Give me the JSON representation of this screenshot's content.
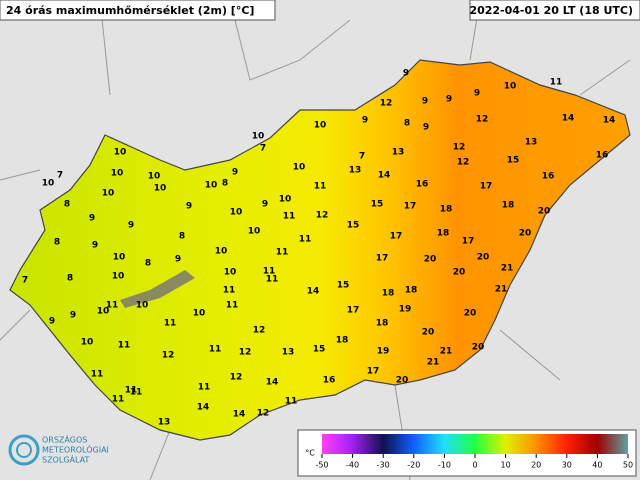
{
  "header": {
    "title": "24 órás maximumhőmérséklet (2m) [°C]",
    "timestamp": "2022-04-01 20 LT (18 UTC)"
  },
  "stations": [
    9,
    9,
    10,
    11,
    9,
    9,
    12,
    10,
    10,
    7,
    9,
    8,
    9,
    12,
    14,
    14,
    7,
    13,
    12,
    13,
    10,
    7,
    10,
    10,
    13,
    14,
    12,
    15,
    16,
    10,
    10,
    9,
    10,
    8,
    11,
    10,
    16,
    17,
    16,
    8,
    10,
    10,
    9,
    9,
    11,
    12,
    15,
    17,
    18,
    18,
    20,
    9,
    9,
    10,
    8,
    9,
    8,
    10,
    11,
    15,
    17,
    18,
    17,
    20,
    7,
    10,
    8,
    9,
    10,
    11,
    17,
    20,
    20,
    8,
    10,
    10,
    11,
    11,
    15,
    18,
    18,
    20,
    21,
    11,
    14,
    21,
    9,
    9,
    11,
    10,
    10,
    10,
    11,
    11,
    17,
    19,
    20,
    10,
    11,
    12,
    18,
    20,
    12,
    11,
    12,
    13,
    15,
    18,
    19,
    21,
    20,
    11,
    12,
    14,
    16,
    17,
    21,
    11,
    11,
    20,
    11,
    11,
    14,
    11,
    13,
    14,
    12
  ],
  "colorbar": {
    "unit": "°C",
    "ticks": [
      -50,
      -40,
      -30,
      -20,
      -10,
      0,
      10,
      20,
      30,
      40,
      50
    ]
  },
  "logo": {
    "lines": [
      "ORSZÁGOS",
      "METEOROLÓGIAI",
      "SZOLGÁLAT"
    ]
  }
}
